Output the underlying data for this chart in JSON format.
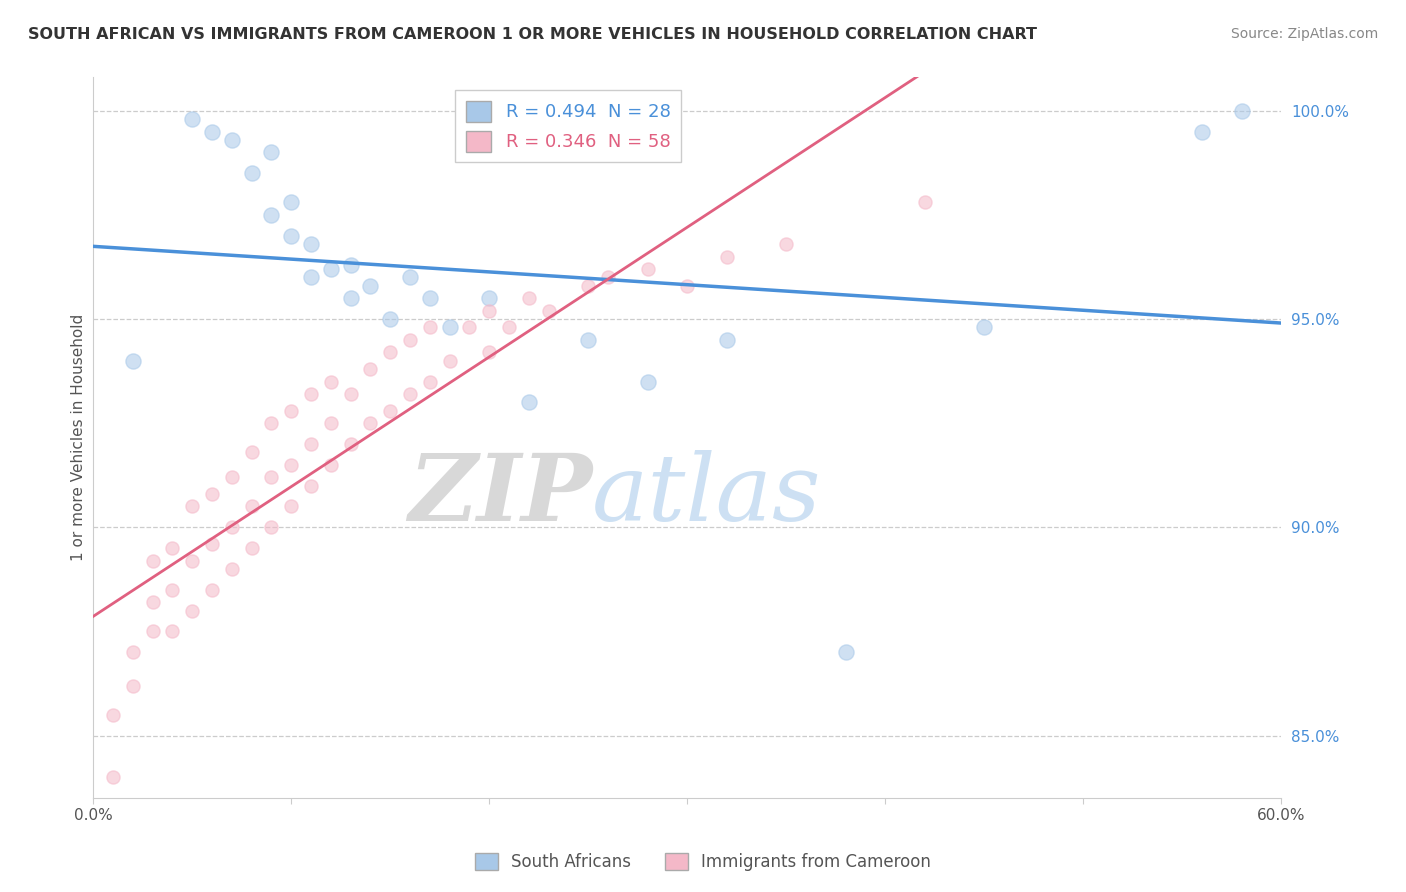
{
  "title": "SOUTH AFRICAN VS IMMIGRANTS FROM CAMEROON 1 OR MORE VEHICLES IN HOUSEHOLD CORRELATION CHART",
  "source": "Source: ZipAtlas.com",
  "ylabel": "1 or more Vehicles in Household",
  "xlim": [
    0.0,
    0.6
  ],
  "ylim": [
    0.835,
    1.008
  ],
  "x_ticks": [
    0.0,
    0.1,
    0.2,
    0.3,
    0.4,
    0.5,
    0.6
  ],
  "x_tick_labels": [
    "0.0%",
    "",
    "",
    "",
    "",
    "",
    "60.0%"
  ],
  "y_ticks": [
    0.85,
    0.9,
    0.95,
    1.0
  ],
  "y_tick_labels": [
    "85.0%",
    "90.0%",
    "95.0%",
    "100.0%"
  ],
  "blue_R": 0.494,
  "blue_N": 28,
  "pink_R": 0.346,
  "pink_N": 58,
  "blue_color": "#a8c8e8",
  "pink_color": "#f4b8c8",
  "blue_line_color": "#4a90d9",
  "pink_line_color": "#e06080",
  "legend_label_blue": "South Africans",
  "legend_label_pink": "Immigrants from Cameroon",
  "watermark_zip": "ZIP",
  "watermark_atlas": "atlas",
  "background_color": "#ffffff",
  "blue_scatter_x": [
    0.02,
    0.05,
    0.06,
    0.07,
    0.08,
    0.09,
    0.09,
    0.1,
    0.1,
    0.11,
    0.11,
    0.12,
    0.13,
    0.13,
    0.14,
    0.15,
    0.16,
    0.17,
    0.18,
    0.2,
    0.22,
    0.25,
    0.28,
    0.32,
    0.38,
    0.45,
    0.56,
    0.58
  ],
  "blue_scatter_y": [
    0.94,
    0.998,
    0.995,
    0.993,
    0.985,
    0.99,
    0.975,
    0.978,
    0.97,
    0.968,
    0.96,
    0.962,
    0.955,
    0.963,
    0.958,
    0.95,
    0.96,
    0.955,
    0.948,
    0.955,
    0.93,
    0.945,
    0.935,
    0.945,
    0.87,
    0.948,
    0.995,
    1.0
  ],
  "pink_scatter_x": [
    0.01,
    0.01,
    0.02,
    0.02,
    0.03,
    0.03,
    0.03,
    0.04,
    0.04,
    0.04,
    0.05,
    0.05,
    0.05,
    0.06,
    0.06,
    0.06,
    0.07,
    0.07,
    0.07,
    0.08,
    0.08,
    0.08,
    0.09,
    0.09,
    0.09,
    0.1,
    0.1,
    0.1,
    0.11,
    0.11,
    0.11,
    0.12,
    0.12,
    0.12,
    0.13,
    0.13,
    0.14,
    0.14,
    0.15,
    0.15,
    0.16,
    0.16,
    0.17,
    0.17,
    0.18,
    0.19,
    0.2,
    0.2,
    0.21,
    0.22,
    0.23,
    0.25,
    0.26,
    0.28,
    0.3,
    0.32,
    0.35,
    0.42
  ],
  "pink_scatter_y": [
    0.84,
    0.855,
    0.862,
    0.87,
    0.875,
    0.882,
    0.892,
    0.875,
    0.885,
    0.895,
    0.88,
    0.892,
    0.905,
    0.885,
    0.896,
    0.908,
    0.89,
    0.9,
    0.912,
    0.895,
    0.905,
    0.918,
    0.9,
    0.912,
    0.925,
    0.905,
    0.915,
    0.928,
    0.91,
    0.92,
    0.932,
    0.915,
    0.925,
    0.935,
    0.92,
    0.932,
    0.925,
    0.938,
    0.928,
    0.942,
    0.932,
    0.945,
    0.935,
    0.948,
    0.94,
    0.948,
    0.942,
    0.952,
    0.948,
    0.955,
    0.952,
    0.958,
    0.96,
    0.962,
    0.958,
    0.965,
    0.968,
    0.978
  ],
  "blue_marker_size": 120,
  "pink_marker_size": 90
}
